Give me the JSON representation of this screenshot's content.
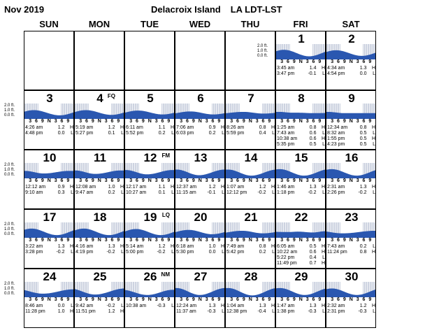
{
  "header": {
    "month": "Nov 2019",
    "station": "Delacroix Island",
    "state_tz": "LA  LDT-LST"
  },
  "weekdays": [
    "SUN",
    "MON",
    "TUE",
    "WED",
    "THU",
    "FRI",
    "SAT"
  ],
  "axis": {
    "labels": [
      "2.0 ft.",
      "1.0 ft.",
      "0.0 ft."
    ],
    "hour_ticks": "3 6 9 N 3 6 9"
  },
  "colors": {
    "tide_fill": "#2a57b0",
    "night_shade": "#9aa6c2"
  },
  "weeks": [
    [
      null,
      null,
      null,
      null,
      null,
      {
        "day": "1",
        "phase": "",
        "tides": [
          [
            "3:45 am",
            "1.4",
            "H"
          ],
          [
            "3:47 pm",
            "-0.1",
            "L"
          ]
        ]
      },
      {
        "day": "2",
        "phase": "",
        "tides": [
          [
            "4:34 am",
            "1.3",
            "H"
          ],
          [
            "4:54 pm",
            "0.0",
            "L"
          ]
        ]
      }
    ],
    [
      {
        "day": "3",
        "phase": "",
        "tides": [
          [
            "4:26 am",
            "1.2",
            "H"
          ],
          [
            "4:48 pm",
            "0.0",
            "L"
          ]
        ]
      },
      {
        "day": "4",
        "phase": "FQ",
        "tides": [
          [
            "5:19 am",
            "1.2",
            "H"
          ],
          [
            "5:27 pm",
            "0.1",
            "L"
          ]
        ]
      },
      {
        "day": "5",
        "phase": "",
        "tides": [
          [
            "6:11 am",
            "1.1",
            "H"
          ],
          [
            "5:52 pm",
            "0.2",
            "L"
          ]
        ]
      },
      {
        "day": "6",
        "phase": "",
        "tides": [
          [
            "7:06 am",
            "0.9",
            "H"
          ],
          [
            "6:03 pm",
            "0.2",
            "L"
          ]
        ]
      },
      {
        "day": "7",
        "phase": "",
        "tides": [
          [
            "8:26 am",
            "0.8",
            "H"
          ],
          [
            "5:59 pm",
            "0.4",
            "L"
          ]
        ]
      },
      {
        "day": "8",
        "phase": "",
        "tides": [
          [
            "1:25 am",
            "0.8",
            "H"
          ],
          [
            "7:43 am",
            "0.6",
            "L"
          ],
          [
            "10:38 am",
            "0.6",
            "H"
          ],
          [
            "5:35 pm",
            "0.5",
            "L"
          ]
        ]
      },
      {
        "day": "9",
        "phase": "",
        "tides": [
          [
            "12:34 am",
            "0.8",
            "H"
          ],
          [
            "8:32 am",
            "0.5",
            "L"
          ],
          [
            "1:55 pm",
            "0.5",
            "H"
          ],
          [
            "4:23 pm",
            "0.5",
            "L"
          ]
        ]
      }
    ],
    [
      {
        "day": "10",
        "phase": "",
        "tides": [
          [
            "12:12 am",
            "0.9",
            "H"
          ],
          [
            "9:10 am",
            "0.3",
            "L"
          ]
        ]
      },
      {
        "day": "11",
        "phase": "",
        "tides": [
          [
            "12:08 am",
            "1.0",
            "H"
          ],
          [
            "9:47 am",
            "0.2",
            "L"
          ]
        ]
      },
      {
        "day": "12",
        "phase": "FM",
        "tides": [
          [
            "12:17 am",
            "1.1",
            "H"
          ],
          [
            "10:27 am",
            "0.1",
            "L"
          ]
        ]
      },
      {
        "day": "13",
        "phase": "",
        "tides": [
          [
            "12:37 am",
            "1.2",
            "H"
          ],
          [
            "11:15 am",
            "-0.1",
            "L"
          ]
        ]
      },
      {
        "day": "14",
        "phase": "",
        "tides": [
          [
            "1:07 am",
            "1.2",
            "H"
          ],
          [
            "12:12 pm",
            "-0.2",
            "L"
          ]
        ]
      },
      {
        "day": "15",
        "phase": "",
        "tides": [
          [
            "1:46 am",
            "1.3",
            "H"
          ],
          [
            "1:18 pm",
            "-0.2",
            "L"
          ]
        ]
      },
      {
        "day": "16",
        "phase": "",
        "tides": [
          [
            "2:31 am",
            "1.3",
            "H"
          ],
          [
            "2:26 pm",
            "-0.2",
            "L"
          ]
        ]
      }
    ],
    [
      {
        "day": "17",
        "phase": "",
        "tides": [
          [
            "3:22 am",
            "1.3",
            "H"
          ],
          [
            "3:28 pm",
            "-0.2",
            "L"
          ]
        ]
      },
      {
        "day": "18",
        "phase": "",
        "tides": [
          [
            "4:16 am",
            "1.3",
            "H"
          ],
          [
            "4:19 pm",
            "-0.2",
            "L"
          ]
        ]
      },
      {
        "day": "19",
        "phase": "LQ",
        "tides": [
          [
            "5:14 am",
            "1.2",
            "H"
          ],
          [
            "5:00 pm",
            "-0.2",
            "L"
          ]
        ]
      },
      {
        "day": "20",
        "phase": "",
        "tides": [
          [
            "6:18 am",
            "1.0",
            "H"
          ],
          [
            "5:30 pm",
            "0.0",
            "L"
          ]
        ]
      },
      {
        "day": "21",
        "phase": "",
        "tides": [
          [
            "7:49 am",
            "0.8",
            "H"
          ],
          [
            "5:42 pm",
            "0.2",
            "L"
          ]
        ]
      },
      {
        "day": "22",
        "phase": "",
        "tides": [
          [
            "6:05 am",
            "0.5",
            "H"
          ],
          [
            "10:22 am",
            "0.6",
            "H"
          ],
          [
            "5:22 pm",
            "0.4",
            "L"
          ],
          [
            "11:49 pm",
            "0.7",
            "H"
          ]
        ]
      },
      {
        "day": "23",
        "phase": "",
        "tides": [
          [
            "7:43 am",
            "0.2",
            "L"
          ],
          [
            "11:24 pm",
            "0.8",
            "H"
          ]
        ]
      }
    ],
    [
      {
        "day": "24",
        "phase": "",
        "tides": [
          [
            "8:46 am",
            "0.0",
            "L"
          ],
          [
            "11:28 pm",
            "1.0",
            "H"
          ]
        ]
      },
      {
        "day": "25",
        "phase": "",
        "tides": [
          [
            "9:42 am",
            "-0.2",
            "L"
          ],
          [
            "11:51 pm",
            "1.2",
            "H"
          ]
        ]
      },
      {
        "day": "26",
        "phase": "NM",
        "tides": [
          [
            "10:38 am",
            "-0.3",
            "L"
          ]
        ]
      },
      {
        "day": "27",
        "phase": "",
        "tides": [
          [
            "12:24 am",
            "1.3",
            "H"
          ],
          [
            "11:37 am",
            "-0.3",
            "L"
          ]
        ]
      },
      {
        "day": "28",
        "phase": "",
        "tides": [
          [
            "1:04 am",
            "1.3",
            "H"
          ],
          [
            "12:38 pm",
            "-0.4",
            "L"
          ]
        ]
      },
      {
        "day": "29",
        "phase": "",
        "tides": [
          [
            "1:47 am",
            "1.3",
            "H"
          ],
          [
            "1:38 pm",
            "-0.3",
            "L"
          ]
        ]
      },
      {
        "day": "30",
        "phase": "",
        "tides": [
          [
            "2:32 am",
            "1.2",
            "H"
          ],
          [
            "2:31 pm",
            "-0.3",
            "L"
          ]
        ]
      }
    ]
  ]
}
